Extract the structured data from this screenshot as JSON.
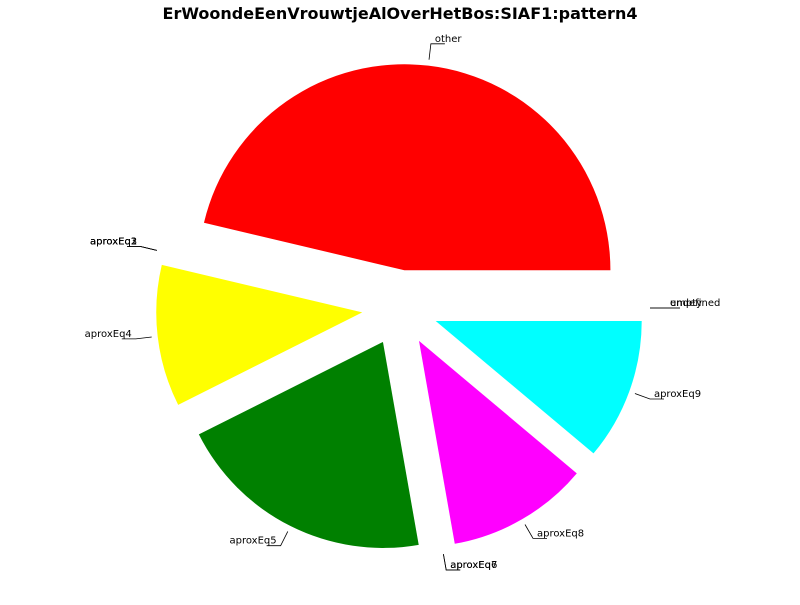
{
  "chart_data": {
    "type": "pie",
    "title": "ErWoondeEenVrouwtjeAlOverHetBos:SIAF1:pattern4",
    "slices": [
      {
        "label": "other",
        "value": 50,
        "color": "#ff0000"
      },
      {
        "label": "aproxEq1",
        "value": 0,
        "color": "#ff0000"
      },
      {
        "label": "aproxEq2",
        "value": 0,
        "color": "#ff0000"
      },
      {
        "label": "aproxEq3",
        "value": 0,
        "color": "#ff0000"
      },
      {
        "label": "aproxEq4",
        "value": 12,
        "color": "#ffff00"
      },
      {
        "label": "aproxEq5",
        "value": 22,
        "color": "#008000"
      },
      {
        "label": "aproxEq6",
        "value": 0,
        "color": "#0000ff"
      },
      {
        "label": "aproxEq7",
        "value": 0,
        "color": "#0000ff"
      },
      {
        "label": "aproxEq8",
        "value": 12,
        "color": "#ff00ff"
      },
      {
        "label": "aproxEq9",
        "value": 12,
        "color": "#00ffff"
      },
      {
        "label": "empty",
        "value": 0,
        "color": "#00ffff"
      },
      {
        "label": "undefined",
        "value": 0,
        "color": "#00ffff"
      }
    ],
    "legend": "none"
  }
}
